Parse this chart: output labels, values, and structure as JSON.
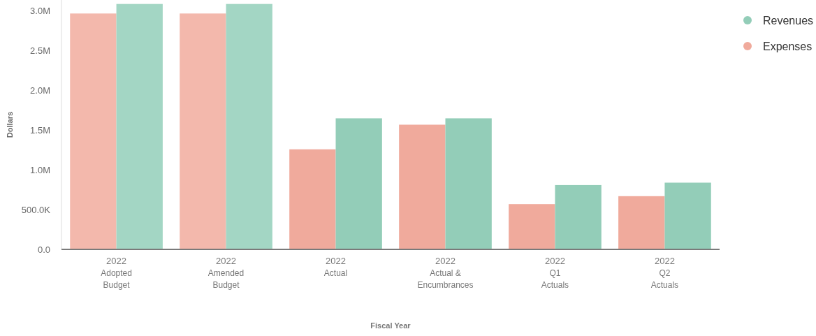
{
  "chart_data": {
    "type": "bar",
    "xlabel": "Fiscal Year",
    "ylabel": "Dollars",
    "categories": [
      "2022\nAdopted\nBudget",
      "2022\nAmended\nBudget",
      "2022\nActual",
      "2022\nActual &\nEncumbrances",
      "2022\nQ1\nActuals",
      "2022\nQ2\nActuals"
    ],
    "series": [
      {
        "name": "Expenses",
        "color": "#f0aa9c",
        "colors": [
          "#f3b8ac",
          "#f3b8ac",
          "#f0aa9c",
          "#f0aa9c",
          "#f0aa9c",
          "#f0aa9c"
        ],
        "values": [
          2970000,
          2970000,
          1260000,
          1570000,
          570000,
          670000
        ]
      },
      {
        "name": "Revenues",
        "color": "#93cdb8",
        "colors": [
          "#a3d6c4",
          "#a3d6c4",
          "#93cdb8",
          "#93cdb8",
          "#93cdb8",
          "#93cdb8"
        ],
        "values": [
          3090000,
          3090000,
          1650000,
          1650000,
          810000,
          840000
        ]
      }
    ],
    "ylim": [
      0,
      3140000
    ],
    "yticks": [
      {
        "value": 0,
        "label": "0.0"
      },
      {
        "value": 500000,
        "label": "500.0K"
      },
      {
        "value": 1000000,
        "label": "1.0M"
      },
      {
        "value": 1500000,
        "label": "1.5M"
      },
      {
        "value": 2000000,
        "label": "2.0M"
      },
      {
        "value": 2500000,
        "label": "2.5M"
      },
      {
        "value": 3000000,
        "label": "3.0M"
      }
    ],
    "legend": "top right",
    "grid": false
  }
}
